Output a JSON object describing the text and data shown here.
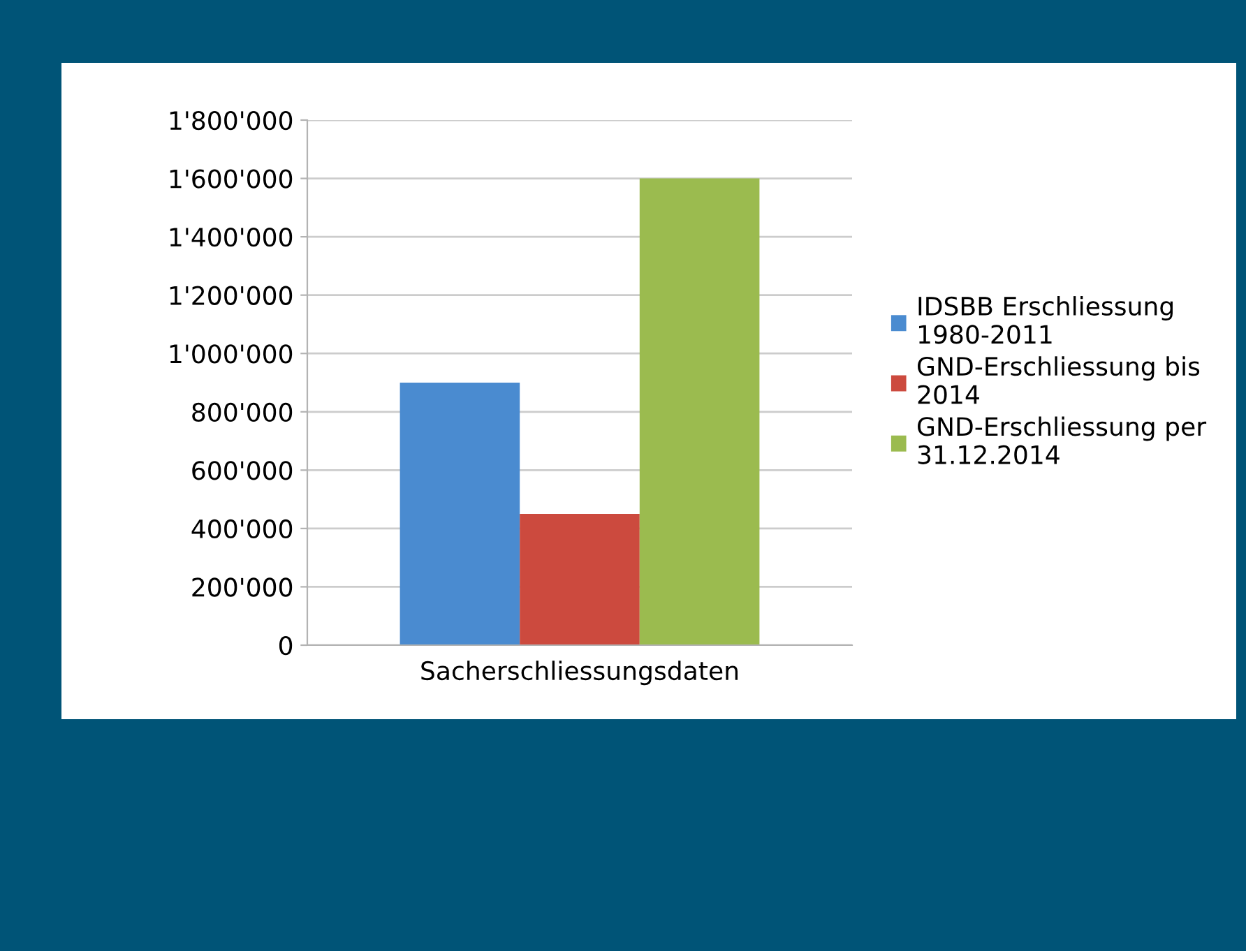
{
  "chart_data": {
    "type": "bar",
    "categories": [
      "Sacherschliessungsdaten"
    ],
    "series": [
      {
        "name": "IDSBB Erschliessung 1980-2011",
        "color": "#4a8bd0",
        "values": [
          900000
        ]
      },
      {
        "name": "GND-Erschliessung bis 2014",
        "color": "#cc4a3e",
        "values": [
          450000
        ]
      },
      {
        "name": "GND-Erschliessung per 31.12.2014",
        "color": "#9bbb4f",
        "values": [
          1600000
        ]
      }
    ],
    "ylim": [
      0,
      1800000
    ],
    "yticks": [
      0,
      {
        "value": 200000,
        "label": "200'000"
      },
      {
        "value": 400000,
        "label": "400'000"
      },
      {
        "value": 600000,
        "label": "600'000"
      },
      {
        "value": 800000,
        "label": "800'000"
      },
      {
        "value": 1000000,
        "label": "1'000'000"
      },
      {
        "value": 1200000,
        "label": "1'200'000"
      },
      {
        "value": 1400000,
        "label": "1'400'000"
      },
      {
        "value": 1600000,
        "label": "1'600'000"
      },
      {
        "value": 1800000,
        "label": "1'800'000"
      }
    ],
    "grid": "y",
    "legend": "right"
  }
}
